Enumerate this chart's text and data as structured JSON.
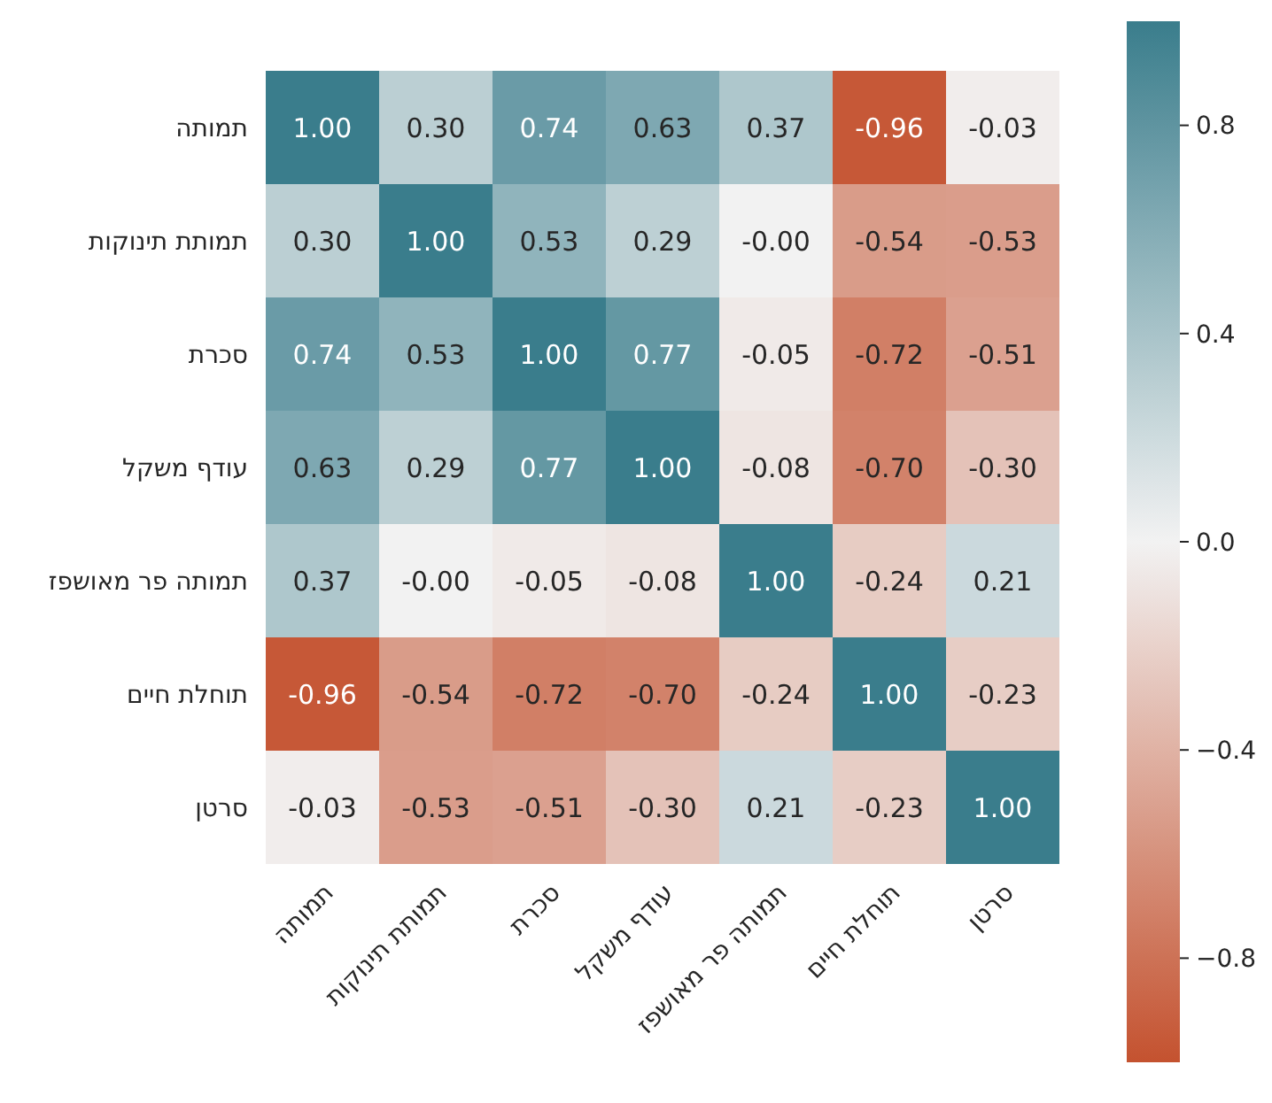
{
  "chart_data": {
    "type": "heatmap",
    "categories": [
      "תמותה",
      "תמותת תינוקות",
      "סכרת",
      "עודף משקל",
      "תמותה פר מאושפז",
      "תוחלת חיים",
      "סרטן"
    ],
    "y_categories": [
      "תמותה",
      "תמותת תינוקות",
      "סכרת",
      "עודף משקל",
      "תמותה פר מאושפז",
      "תוחלת חיים",
      "סרטן"
    ],
    "cells": [
      [
        1.0,
        0.3,
        0.74,
        0.63,
        0.37,
        -0.96,
        -0.03
      ],
      [
        0.3,
        1.0,
        0.53,
        0.29,
        0.0,
        -0.54,
        -0.53
      ],
      [
        0.74,
        0.53,
        1.0,
        0.77,
        -0.05,
        -0.72,
        -0.51
      ],
      [
        0.63,
        0.29,
        0.77,
        1.0,
        -0.08,
        -0.7,
        -0.3
      ],
      [
        0.37,
        0.0,
        -0.05,
        -0.08,
        1.0,
        -0.24,
        0.21
      ],
      [
        -0.96,
        -0.54,
        -0.72,
        -0.7,
        -0.24,
        1.0,
        -0.23
      ],
      [
        -0.03,
        -0.53,
        -0.51,
        -0.3,
        0.21,
        -0.23,
        1.0
      ]
    ],
    "cell_labels": [
      [
        "1.00",
        "0.30",
        "0.74",
        "0.63",
        "0.37",
        "-0.96",
        "-0.03"
      ],
      [
        "0.30",
        "1.00",
        "0.53",
        "0.29",
        "-0.00",
        "-0.54",
        "-0.53"
      ],
      [
        "0.74",
        "0.53",
        "1.00",
        "0.77",
        "-0.05",
        "-0.72",
        "-0.51"
      ],
      [
        "0.63",
        "0.29",
        "0.77",
        "1.00",
        "-0.08",
        "-0.70",
        "-0.30"
      ],
      [
        "0.37",
        "-0.00",
        "-0.05",
        "-0.08",
        "1.00",
        "-0.24",
        "0.21"
      ],
      [
        "-0.96",
        "-0.54",
        "-0.72",
        "-0.70",
        "-0.24",
        "1.00",
        "-0.23"
      ],
      [
        "-0.03",
        "-0.53",
        "-0.51",
        "-0.30",
        "0.21",
        "-0.23",
        "1.00"
      ]
    ],
    "clim": [
      -1,
      1
    ],
    "cticks": [
      0.8,
      0.4,
      {
        "value": 0,
        "label": "0.0"
      },
      {
        "value": -0.4,
        "label": "−0.4"
      },
      {
        "value": -0.8,
        "label": "−0.8"
      }
    ]
  }
}
